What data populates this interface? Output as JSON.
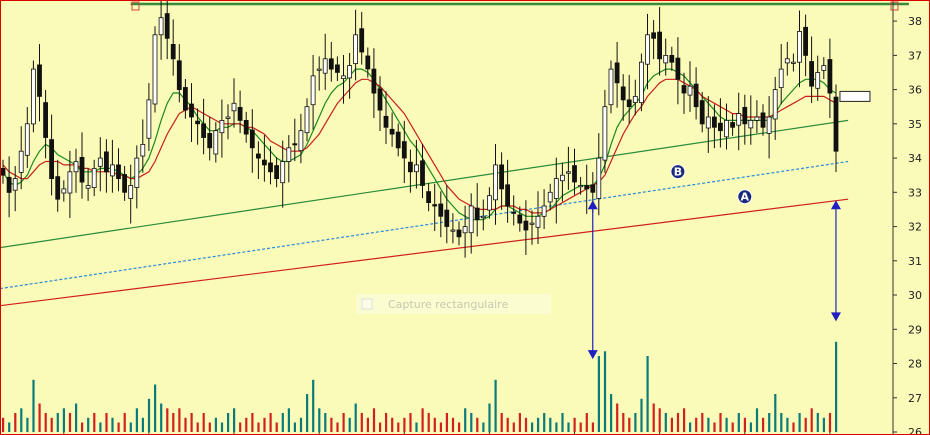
{
  "chart_data": {
    "type": "candlestick",
    "title": "",
    "xlabel": "",
    "ylabel": "",
    "ylim": [
      26,
      38.5
    ],
    "y_ticks": [
      "26",
      "27",
      "28",
      "29",
      "30",
      "31",
      "32",
      "33",
      "34",
      "35",
      "36",
      "37",
      "38"
    ],
    "grid": false,
    "legend": "none",
    "background_color": "#fbfbb9",
    "colors": {
      "candle": "#111111",
      "ma_short": "#1a8a1a",
      "ma_long": "#c81e1e",
      "trend_a": "#d02020",
      "trend_mid": "#2a8a3a",
      "trend_b_dashed": "#2a8ad8",
      "resistance": "#3a8a3a",
      "arrow": "#2020c0",
      "badge": "#1a2a7a",
      "volume_up": "#0a7a7a",
      "volume_down": "#d02020"
    },
    "closes": [
      33.5,
      33.0,
      33.4,
      34.2,
      35.0,
      36.6,
      35.8,
      34.6,
      33.4,
      32.8,
      33.1,
      33.6,
      33.9,
      33.3,
      33.2,
      33.7,
      34.0,
      33.6,
      33.8,
      33.4,
      33.0,
      33.2,
      34.0,
      34.4,
      35.7,
      37.6,
      38.1,
      37.5,
      36.9,
      36.0,
      35.4,
      35.2,
      35.0,
      34.6,
      34.3,
      34.8,
      35.1,
      35.2,
      35.6,
      35.1,
      34.7,
      34.3,
      34.0,
      33.8,
      33.6,
      33.4,
      33.9,
      34.3,
      34.4,
      34.8,
      35.5,
      36.4,
      36.6,
      36.9,
      36.6,
      36.5,
      36.4,
      36.7,
      37.6,
      37.1,
      36.6,
      35.9,
      35.4,
      34.9,
      34.7,
      34.3,
      34.0,
      33.6,
      33.8,
      33.2,
      32.7,
      32.6,
      32.3,
      32.0,
      31.9,
      31.7,
      32.0,
      32.6,
      32.2,
      32.3,
      32.9,
      33.8,
      33.1,
      32.6,
      32.4,
      32.1,
      31.9,
      32.1,
      32.3,
      32.6,
      33.0,
      33.4,
      33.5,
      33.6,
      33.3,
      33.2,
      33.1,
      33.0,
      34.0,
      35.5,
      36.6,
      36.2,
      35.7,
      35.5,
      35.8,
      36.8,
      37.6,
      37.5,
      36.9,
      37.0,
      36.8,
      36.3,
      35.9,
      36.1,
      35.5,
      35.0,
      35.2,
      34.9,
      34.8,
      35.1,
      34.9,
      35.3,
      35.0,
      35.1,
      35.2,
      34.9,
      35.2,
      36.0,
      36.6,
      36.9,
      36.8,
      37.7,
      37.0,
      36.1,
      36.5,
      36.7,
      35.9,
      34.2
    ],
    "moving_averages": [
      {
        "name": "",
        "color": "#1a8a1a",
        "values": [
          33.6,
          33.3,
          33.2,
          33.3,
          33.5,
          33.9,
          34.2,
          34.4,
          34.3,
          34.1,
          34.0,
          33.9,
          33.8,
          33.6,
          33.6,
          33.6,
          33.7,
          33.7,
          33.7,
          33.6,
          33.5,
          33.4,
          33.5,
          33.7,
          34.0,
          34.5,
          35.1,
          35.6,
          35.9,
          35.9,
          35.7,
          35.5,
          35.2,
          35.0,
          34.8,
          34.8,
          34.9,
          34.9,
          35.0,
          35.0,
          34.9,
          34.8,
          34.6,
          34.4,
          34.2,
          34.0,
          33.9,
          33.9,
          34.0,
          34.1,
          34.4,
          34.8,
          35.2,
          35.6,
          35.9,
          36.1,
          36.2,
          36.4,
          36.6,
          36.6,
          36.5,
          36.3,
          36.0,
          35.7,
          35.4,
          35.1,
          34.8,
          34.5,
          34.3,
          34.0,
          33.7,
          33.4,
          33.1,
          32.8,
          32.6,
          32.4,
          32.3,
          32.2,
          32.2,
          32.2,
          32.3,
          32.5,
          32.6,
          32.6,
          32.5,
          32.4,
          32.3,
          32.3,
          32.3,
          32.4,
          32.5,
          32.7,
          32.9,
          33.0,
          33.1,
          33.2,
          33.2,
          33.2,
          33.4,
          33.8,
          34.4,
          34.9,
          35.2,
          35.4,
          35.6,
          35.8,
          36.2,
          36.4,
          36.5,
          36.6,
          36.6,
          36.5,
          36.4,
          36.2,
          36.0,
          35.8,
          35.6,
          35.4,
          35.2,
          35.1,
          35.1,
          35.1,
          35.1,
          35.1,
          35.1,
          35.1,
          35.1,
          35.3,
          35.6,
          35.8,
          36.0,
          36.2,
          36.3,
          36.3,
          36.3,
          36.2,
          36.0,
          35.9
        ]
      },
      {
        "name": "",
        "color": "#c81e1e",
        "values": [
          33.8,
          33.6,
          33.5,
          33.4,
          33.4,
          33.6,
          33.8,
          33.9,
          33.9,
          33.9,
          33.8,
          33.8,
          33.8,
          33.7,
          33.7,
          33.6,
          33.6,
          33.6,
          33.6,
          33.5,
          33.5,
          33.4,
          33.4,
          33.5,
          33.6,
          33.9,
          34.3,
          34.7,
          35.0,
          35.3,
          35.4,
          35.5,
          35.4,
          35.3,
          35.2,
          35.1,
          35.0,
          35.0,
          35.0,
          35.0,
          34.9,
          34.9,
          34.8,
          34.7,
          34.5,
          34.4,
          34.3,
          34.2,
          34.2,
          34.2,
          34.3,
          34.5,
          34.7,
          35.0,
          35.3,
          35.6,
          35.8,
          36.0,
          36.2,
          36.3,
          36.3,
          36.2,
          36.1,
          35.9,
          35.7,
          35.5,
          35.3,
          35.0,
          34.7,
          34.4,
          34.1,
          33.8,
          33.5,
          33.2,
          33.0,
          32.8,
          32.7,
          32.6,
          32.5,
          32.5,
          32.5,
          32.5,
          32.6,
          32.6,
          32.6,
          32.5,
          32.5,
          32.4,
          32.4,
          32.4,
          32.5,
          32.6,
          32.7,
          32.8,
          32.9,
          33.0,
          33.1,
          33.2,
          33.3,
          33.5,
          33.9,
          34.3,
          34.7,
          35.0,
          35.3,
          35.5,
          35.8,
          36.0,
          36.2,
          36.3,
          36.3,
          36.3,
          36.2,
          36.1,
          36.0,
          35.8,
          35.7,
          35.6,
          35.5,
          35.4,
          35.3,
          35.3,
          35.2,
          35.2,
          35.2,
          35.2,
          35.2,
          35.3,
          35.4,
          35.5,
          35.6,
          35.7,
          35.8,
          35.8,
          35.8,
          35.8,
          35.7,
          35.6
        ]
      }
    ],
    "volume_bars": [
      {
        "dir": "down",
        "value": 0.15
      },
      {
        "dir": "up",
        "value": 0.1
      },
      {
        "dir": "down",
        "value": 0.2
      },
      {
        "dir": "up",
        "value": 0.25
      },
      {
        "dir": "up",
        "value": 0.15
      },
      {
        "dir": "up",
        "value": 0.55
      },
      {
        "dir": "down",
        "value": 0.3
      },
      {
        "dir": "down",
        "value": 0.2
      },
      {
        "dir": "down",
        "value": 0.15
      },
      {
        "dir": "up",
        "value": 0.2
      },
      {
        "dir": "up",
        "value": 0.25
      },
      {
        "dir": "down",
        "value": 0.2
      },
      {
        "dir": "up",
        "value": 0.3
      },
      {
        "dir": "down",
        "value": 0.1
      },
      {
        "dir": "up",
        "value": 0.15
      },
      {
        "dir": "down",
        "value": 0.2
      },
      {
        "dir": "up",
        "value": 0.1
      },
      {
        "dir": "down",
        "value": 0.2
      },
      {
        "dir": "up",
        "value": 0.15
      },
      {
        "dir": "down",
        "value": 0.1
      },
      {
        "dir": "down",
        "value": 0.2
      },
      {
        "dir": "up",
        "value": 0.1
      },
      {
        "dir": "up",
        "value": 0.25
      },
      {
        "dir": "up",
        "value": 0.15
      },
      {
        "dir": "up",
        "value": 0.35
      },
      {
        "dir": "up",
        "value": 0.5
      },
      {
        "dir": "up",
        "value": 0.3
      },
      {
        "dir": "down",
        "value": 0.25
      },
      {
        "dir": "down",
        "value": 0.2
      },
      {
        "dir": "down",
        "value": 0.25
      },
      {
        "dir": "down",
        "value": 0.15
      },
      {
        "dir": "down",
        "value": 0.2
      },
      {
        "dir": "down",
        "value": 0.1
      },
      {
        "dir": "down",
        "value": 0.2
      },
      {
        "dir": "down",
        "value": 0.1
      },
      {
        "dir": "up",
        "value": 0.15
      },
      {
        "dir": "up",
        "value": 0.1
      },
      {
        "dir": "up",
        "value": 0.2
      },
      {
        "dir": "up",
        "value": 0.25
      },
      {
        "dir": "down",
        "value": 0.1
      },
      {
        "dir": "down",
        "value": 0.15
      },
      {
        "dir": "down",
        "value": 0.2
      },
      {
        "dir": "down",
        "value": 0.1
      },
      {
        "dir": "down",
        "value": 0.15
      },
      {
        "dir": "down",
        "value": 0.2
      },
      {
        "dir": "down",
        "value": 0.1
      },
      {
        "dir": "up",
        "value": 0.2
      },
      {
        "dir": "up",
        "value": 0.25
      },
      {
        "dir": "up",
        "value": 0.1
      },
      {
        "dir": "up",
        "value": 0.15
      },
      {
        "dir": "up",
        "value": 0.4
      },
      {
        "dir": "up",
        "value": 0.55
      },
      {
        "dir": "up",
        "value": 0.25
      },
      {
        "dir": "up",
        "value": 0.2
      },
      {
        "dir": "down",
        "value": 0.15
      },
      {
        "dir": "down",
        "value": 0.1
      },
      {
        "dir": "down",
        "value": 0.2
      },
      {
        "dir": "up",
        "value": 0.15
      },
      {
        "dir": "up",
        "value": 0.3
      },
      {
        "dir": "down",
        "value": 0.2
      },
      {
        "dir": "down",
        "value": 0.15
      },
      {
        "dir": "down",
        "value": 0.25
      },
      {
        "dir": "down",
        "value": 0.1
      },
      {
        "dir": "down",
        "value": 0.2
      },
      {
        "dir": "down",
        "value": 0.15
      },
      {
        "dir": "down",
        "value": 0.1
      },
      {
        "dir": "down",
        "value": 0.15
      },
      {
        "dir": "down",
        "value": 0.2
      },
      {
        "dir": "up",
        "value": 0.1
      },
      {
        "dir": "down",
        "value": 0.25
      },
      {
        "dir": "down",
        "value": 0.2
      },
      {
        "dir": "down",
        "value": 0.15
      },
      {
        "dir": "down",
        "value": 0.1
      },
      {
        "dir": "down",
        "value": 0.2
      },
      {
        "dir": "down",
        "value": 0.15
      },
      {
        "dir": "down",
        "value": 0.1
      },
      {
        "dir": "up",
        "value": 0.25
      },
      {
        "dir": "up",
        "value": 0.2
      },
      {
        "dir": "down",
        "value": 0.15
      },
      {
        "dir": "up",
        "value": 0.1
      },
      {
        "dir": "up",
        "value": 0.3
      },
      {
        "dir": "up",
        "value": 0.55
      },
      {
        "dir": "down",
        "value": 0.2
      },
      {
        "dir": "down",
        "value": 0.15
      },
      {
        "dir": "down",
        "value": 0.1
      },
      {
        "dir": "down",
        "value": 0.2
      },
      {
        "dir": "down",
        "value": 0.15
      },
      {
        "dir": "up",
        "value": 0.1
      },
      {
        "dir": "up",
        "value": 0.15
      },
      {
        "dir": "up",
        "value": 0.2
      },
      {
        "dir": "up",
        "value": 0.15
      },
      {
        "dir": "up",
        "value": 0.1
      },
      {
        "dir": "up",
        "value": 0.2
      },
      {
        "dir": "up",
        "value": 0.1
      },
      {
        "dir": "down",
        "value": 0.15
      },
      {
        "dir": "down",
        "value": 0.1
      },
      {
        "dir": "down",
        "value": 0.2
      },
      {
        "dir": "down",
        "value": 0.1
      },
      {
        "dir": "up",
        "value": 0.8
      },
      {
        "dir": "up",
        "value": 0.85
      },
      {
        "dir": "up",
        "value": 0.4
      },
      {
        "dir": "down",
        "value": 0.3
      },
      {
        "dir": "down",
        "value": 0.2
      },
      {
        "dir": "down",
        "value": 0.15
      },
      {
        "dir": "up",
        "value": 0.2
      },
      {
        "dir": "up",
        "value": 0.35
      },
      {
        "dir": "up",
        "value": 0.8
      },
      {
        "dir": "down",
        "value": 0.3
      },
      {
        "dir": "down",
        "value": 0.25
      },
      {
        "dir": "up",
        "value": 0.2
      },
      {
        "dir": "down",
        "value": 0.15
      },
      {
        "dir": "down",
        "value": 0.2
      },
      {
        "dir": "down",
        "value": 0.25
      },
      {
        "dir": "up",
        "value": 0.1
      },
      {
        "dir": "down",
        "value": 0.15
      },
      {
        "dir": "down",
        "value": 0.2
      },
      {
        "dir": "up",
        "value": 0.15
      },
      {
        "dir": "down",
        "value": 0.1
      },
      {
        "dir": "down",
        "value": 0.2
      },
      {
        "dir": "up",
        "value": 0.15
      },
      {
        "dir": "down",
        "value": 0.1
      },
      {
        "dir": "up",
        "value": 0.2
      },
      {
        "dir": "down",
        "value": 0.15
      },
      {
        "dir": "up",
        "value": 0.1
      },
      {
        "dir": "up",
        "value": 0.25
      },
      {
        "dir": "down",
        "value": 0.15
      },
      {
        "dir": "up",
        "value": 0.2
      },
      {
        "dir": "up",
        "value": 0.4
      },
      {
        "dir": "up",
        "value": 0.2
      },
      {
        "dir": "up",
        "value": 0.15
      },
      {
        "dir": "down",
        "value": 0.1
      },
      {
        "dir": "up",
        "value": 0.2
      },
      {
        "dir": "down",
        "value": 0.15
      },
      {
        "dir": "down",
        "value": 0.25
      },
      {
        "dir": "up",
        "value": 0.2
      },
      {
        "dir": "up",
        "value": 0.15
      },
      {
        "dir": "down",
        "value": 0.2
      },
      {
        "dir": "up",
        "value": 0.95
      }
    ],
    "trendlines": [
      {
        "id": "A",
        "label": "A",
        "color": "#d02020",
        "dashed": false,
        "start": {
          "index": 0,
          "value": 29.7
        },
        "end": {
          "index": 139,
          "value": 32.8
        }
      },
      {
        "id": "B",
        "label": "B",
        "color": "#2a8ad8",
        "dashed": true,
        "start": {
          "index": 0,
          "value": 30.2
        },
        "end": {
          "index": 139,
          "value": 33.9
        }
      },
      {
        "id": "mid",
        "label": "",
        "color": "#2a8a3a",
        "dashed": false,
        "start": {
          "index": 0,
          "value": 31.4
        },
        "end": {
          "index": 139,
          "value": 35.1
        }
      },
      {
        "id": "resistance",
        "label": "",
        "color": "#3a8a3a",
        "dashed": false,
        "start": {
          "index": 21,
          "value": 38.5
        },
        "end": {
          "index": 149,
          "value": 38.5
        }
      }
    ],
    "arrows": [
      {
        "index": 97,
        "from_value": 32.8,
        "to_value": 28.1
      },
      {
        "index": 137,
        "from_value": 32.8,
        "to_value": 29.2
      }
    ],
    "price_marker": {
      "value": 35.8
    },
    "watermark": "Capture rectangulaire"
  }
}
